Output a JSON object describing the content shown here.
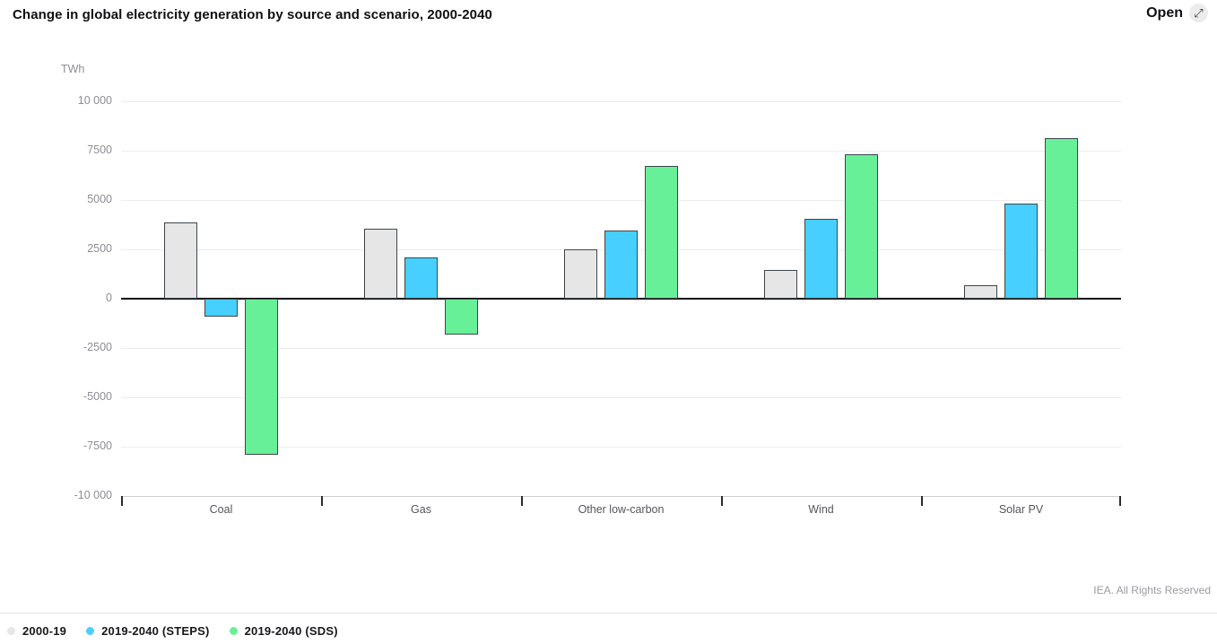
{
  "header": {
    "title": "Change in global electricity generation by source and scenario, 2000-2040",
    "open_label": "Open",
    "open_icon": "expand-diagonal-arrow"
  },
  "chart_data": {
    "type": "bar",
    "title": "Change in global electricity generation by source and scenario, 2000-2040",
    "unit": "TWh",
    "categories": [
      "Coal",
      "Gas",
      "Other low-carbon",
      "Wind",
      "Solar PV"
    ],
    "series": [
      {
        "name": "2000-19",
        "color": "#e6e6e6",
        "values": [
          3850,
          3550,
          2500,
          1450,
          700
        ]
      },
      {
        "name": "2019-2040 (STEPS)",
        "color": "#47cfff",
        "values": [
          -900,
          2100,
          3450,
          4050,
          4800
        ]
      },
      {
        "name": "2019-2040 (SDS)",
        "color": "#68f098",
        "values": [
          -7900,
          -1800,
          6750,
          7300,
          8150
        ]
      }
    ],
    "ylim": [
      -10000,
      10000
    ],
    "yticks": [
      {
        "value": 10000,
        "label": "10 000"
      },
      {
        "value": 7500,
        "label": "7500"
      },
      {
        "value": 5000,
        "label": "5000"
      },
      {
        "value": 2500,
        "label": "2500"
      },
      {
        "value": 0,
        "label": "0"
      },
      {
        "value": -2500,
        "label": "-2500"
      },
      {
        "value": -5000,
        "label": "-5000"
      },
      {
        "value": -7500,
        "label": "-7500"
      },
      {
        "value": -10000,
        "label": "-10 000"
      }
    ],
    "grid": "horizontal",
    "legend_position": "bottom-left",
    "bar_border_color": "#3d464b",
    "zero_line_color": "#0a0a0a"
  },
  "footer": {
    "copyright": "IEA. All Rights Reserved"
  }
}
